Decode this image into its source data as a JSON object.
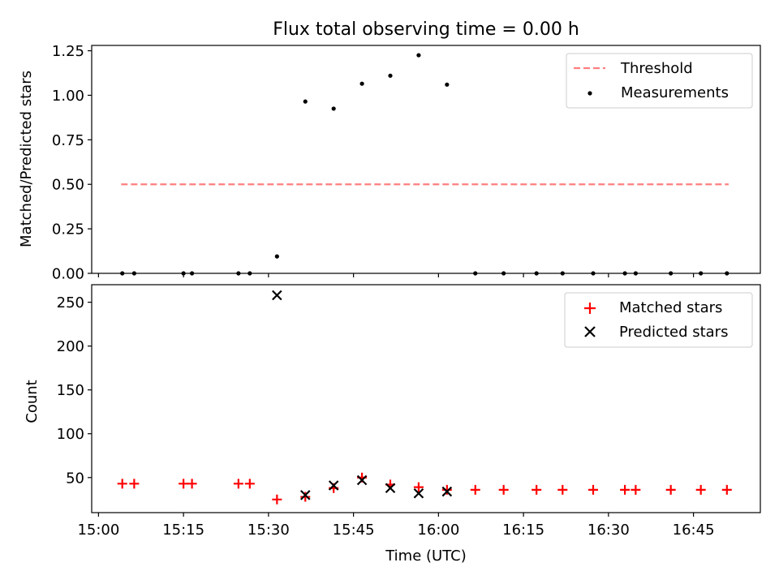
{
  "title": "Flux total observing time = 0.00 h",
  "xlabel": "Time (UTC)",
  "x_ticks": [
    {
      "value": 0,
      "label": "15:00"
    },
    {
      "value": 15,
      "label": "15:15"
    },
    {
      "value": 30,
      "label": "15:30"
    },
    {
      "value": 45,
      "label": "15:45"
    },
    {
      "value": 60,
      "label": "16:00"
    },
    {
      "value": 75,
      "label": "16:15"
    },
    {
      "value": 90,
      "label": "16:30"
    },
    {
      "value": 105,
      "label": "16:45"
    }
  ],
  "colors": {
    "threshold": "#ff7f7f",
    "measurements": "#000000",
    "matched": "#ff0000",
    "predicted": "#000000"
  },
  "chart_data": [
    {
      "type": "scatter",
      "name": "ratio",
      "title": "Flux total observing time = 0.00 h",
      "xlabel": "",
      "ylabel": "Matched/Predicted stars",
      "x_unit": "minutes after 15:00 UTC",
      "xlim": [
        -1.2,
        116.8
      ],
      "ylim": [
        0,
        1.28
      ],
      "y_ticks": [
        {
          "value": 0,
          "label": "0.00"
        },
        {
          "value": 0.25,
          "label": "0.25"
        },
        {
          "value": 0.5,
          "label": "0.50"
        },
        {
          "value": 0.75,
          "label": "0.75"
        },
        {
          "value": 1.0,
          "label": "1.00"
        },
        {
          "value": 1.25,
          "label": "1.25"
        }
      ],
      "legend": {
        "position": "top-right",
        "labels": [
          "Threshold",
          "Measurements"
        ]
      },
      "threshold": {
        "name": "Threshold",
        "x": [
          4.0,
          111.2
        ],
        "y": 0.5
      },
      "series": [
        {
          "name": "Measurements",
          "x": [
            4.2,
            6.3,
            15.0,
            16.5,
            24.7,
            26.7,
            31.5,
            36.5,
            41.5,
            46.5,
            51.5,
            56.5,
            61.5,
            66.5,
            71.5,
            77.3,
            81.9,
            87.3,
            92.9,
            94.8,
            101.0,
            106.3,
            110.9
          ],
          "y": [
            0,
            0,
            0,
            0,
            0,
            0,
            0.095,
            0.965,
            0.925,
            1.065,
            1.11,
            1.225,
            1.06,
            0,
            0,
            0,
            0,
            0,
            0,
            0,
            0,
            0,
            0
          ]
        }
      ]
    },
    {
      "type": "scatter",
      "name": "counts",
      "title": "",
      "xlabel": "Time (UTC)",
      "ylabel": "Count",
      "x_unit": "minutes after 15:00 UTC",
      "xlim": [
        -1.2,
        116.8
      ],
      "ylim": [
        10,
        270
      ],
      "y_ticks": [
        {
          "value": 50,
          "label": "50"
        },
        {
          "value": 100,
          "label": "100"
        },
        {
          "value": 150,
          "label": "150"
        },
        {
          "value": 200,
          "label": "200"
        },
        {
          "value": 250,
          "label": "250"
        }
      ],
      "legend": {
        "position": "top-right",
        "labels": [
          "Matched stars",
          "Predicted stars"
        ]
      },
      "series": [
        {
          "name": "Matched stars",
          "marker": "plus",
          "x": [
            4.2,
            6.3,
            15.0,
            16.5,
            24.7,
            26.7,
            31.5,
            36.5,
            41.5,
            46.5,
            51.5,
            56.5,
            61.5,
            66.5,
            71.5,
            77.3,
            81.9,
            87.3,
            92.9,
            94.8,
            101.0,
            106.3,
            110.9
          ],
          "y": [
            43,
            43,
            43,
            43,
            43,
            43,
            25,
            28,
            38,
            50,
            42,
            39,
            36,
            36,
            36,
            36,
            36,
            36,
            36,
            36,
            36,
            36,
            36
          ]
        },
        {
          "name": "Predicted stars",
          "marker": "x",
          "x": [
            31.5,
            36.5,
            41.5,
            46.5,
            51.5,
            56.5,
            61.5
          ],
          "y": [
            258,
            30,
            41,
            47,
            38,
            32,
            34
          ]
        }
      ]
    }
  ]
}
